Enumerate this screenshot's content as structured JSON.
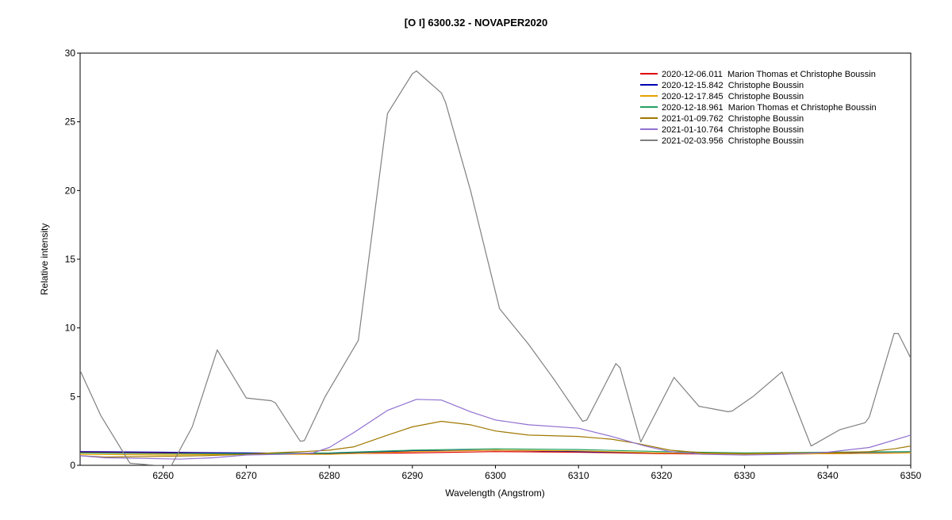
{
  "chart_data": {
    "type": "line",
    "title": "[O I] 6300.32 - NOVAPER2020",
    "xlabel": "Wavelength (Angstrom)",
    "ylabel": "Relative intensity",
    "xlim": [
      6250,
      6350
    ],
    "ylim": [
      0,
      30
    ],
    "xticks": [
      6260,
      6270,
      6280,
      6290,
      6300,
      6310,
      6320,
      6330,
      6340,
      6350
    ],
    "yticks": [
      0,
      5,
      10,
      15,
      20,
      25,
      30
    ],
    "grid": false,
    "legend_position": "top-right",
    "series": [
      {
        "name": "2020-12-06.011  Marion Thomas et Christophe Boussin",
        "color": "#e00000",
        "x": [
          6250,
          6260,
          6270,
          6280,
          6290,
          6300,
          6310,
          6320,
          6330,
          6340,
          6350
        ],
        "y": [
          0.95,
          0.9,
          0.85,
          0.85,
          0.9,
          1.0,
          0.95,
          0.85,
          0.8,
          0.85,
          0.9
        ]
      },
      {
        "name": "2020-12-15.842  Christophe Boussin",
        "color": "#0000b0",
        "x": [
          6250,
          6260,
          6270,
          6280,
          6290,
          6300,
          6310,
          6320,
          6330,
          6340,
          6350
        ],
        "y": [
          1.0,
          0.95,
          0.9,
          0.85,
          1.05,
          1.1,
          1.0,
          0.9,
          0.85,
          0.9,
          0.9
        ]
      },
      {
        "name": "2020-12-17.845  Christophe Boussin",
        "color": "#e8a000",
        "x": [
          6250,
          6260,
          6270,
          6280,
          6290,
          6300,
          6310,
          6320,
          6330,
          6340,
          6350
        ],
        "y": [
          0.8,
          0.75,
          0.8,
          0.8,
          1.0,
          1.1,
          1.05,
          0.9,
          0.8,
          0.85,
          0.9
        ]
      },
      {
        "name": "2020-12-18.961  Marion Thomas et Christophe Boussin",
        "color": "#20a060",
        "x": [
          6250,
          6260,
          6270,
          6280,
          6290,
          6300,
          6310,
          6320,
          6330,
          6340,
          6350
        ],
        "y": [
          0.9,
          0.85,
          0.85,
          0.9,
          1.1,
          1.2,
          1.15,
          1.0,
          0.9,
          0.95,
          1.0
        ]
      },
      {
        "name": "2021-01-09.762  Christophe Boussin",
        "color": "#a07800",
        "x": [
          6250,
          6253,
          6260,
          6265,
          6270,
          6273,
          6277,
          6280,
          6283,
          6287,
          6290,
          6293.5,
          6297,
          6300,
          6304,
          6310,
          6314,
          6317,
          6321,
          6325,
          6330,
          6335,
          6340,
          6345,
          6348,
          6350
        ],
        "y": [
          0.7,
          0.6,
          0.65,
          0.7,
          0.8,
          0.9,
          1.0,
          1.1,
          1.35,
          2.2,
          2.8,
          3.2,
          2.95,
          2.5,
          2.2,
          2.1,
          1.9,
          1.6,
          1.1,
          0.9,
          0.85,
          0.9,
          0.9,
          1.0,
          1.2,
          1.4
        ]
      },
      {
        "name": "2021-01-10.764  Christophe Boussin",
        "color": "#9070d0",
        "x": [
          6250,
          6253,
          6258,
          6262,
          6266,
          6270,
          6274,
          6278,
          6280,
          6283,
          6287,
          6290.5,
          6293.5,
          6297,
          6300,
          6304,
          6310,
          6314,
          6318,
          6321,
          6325,
          6330,
          6335,
          6340,
          6345,
          6350
        ],
        "y": [
          0.7,
          0.55,
          0.5,
          0.45,
          0.55,
          0.75,
          0.8,
          0.9,
          1.3,
          2.4,
          4.0,
          4.8,
          4.75,
          3.9,
          3.3,
          2.95,
          2.7,
          2.1,
          1.4,
          1.0,
          0.8,
          0.75,
          0.8,
          0.95,
          1.3,
          2.2
        ]
      },
      {
        "name": "2021-02-03.956  Christophe Boussin",
        "color": "#808080",
        "x": [
          6250,
          6252.5,
          6256,
          6259,
          6261,
          6263.5,
          6266.5,
          6270,
          6273,
          6273.5,
          6276.5,
          6277,
          6279.5,
          6283.5,
          6287,
          6290,
          6290.5,
          6293.5,
          6294,
          6297,
          6300.5,
          6304,
          6307,
          6310.5,
          6311,
          6314.5,
          6315,
          6317.5,
          6321.5,
          6324.5,
          6328,
          6328.5,
          6331,
          6334.5,
          6338,
          6341.5,
          6344.5,
          6345,
          6348,
          6348.5,
          6350
        ],
        "y": [
          6.9,
          3.6,
          0.15,
          0.0,
          0.0,
          2.8,
          8.4,
          4.9,
          4.7,
          4.55,
          1.75,
          1.8,
          5.0,
          9.1,
          25.6,
          28.5,
          28.7,
          27.1,
          26.4,
          20.0,
          11.4,
          8.8,
          6.3,
          3.2,
          3.3,
          7.4,
          7.1,
          1.7,
          6.4,
          4.3,
          3.9,
          3.95,
          5.0,
          6.8,
          1.4,
          2.6,
          3.1,
          3.5,
          9.6,
          9.6,
          7.8
        ]
      }
    ]
  }
}
